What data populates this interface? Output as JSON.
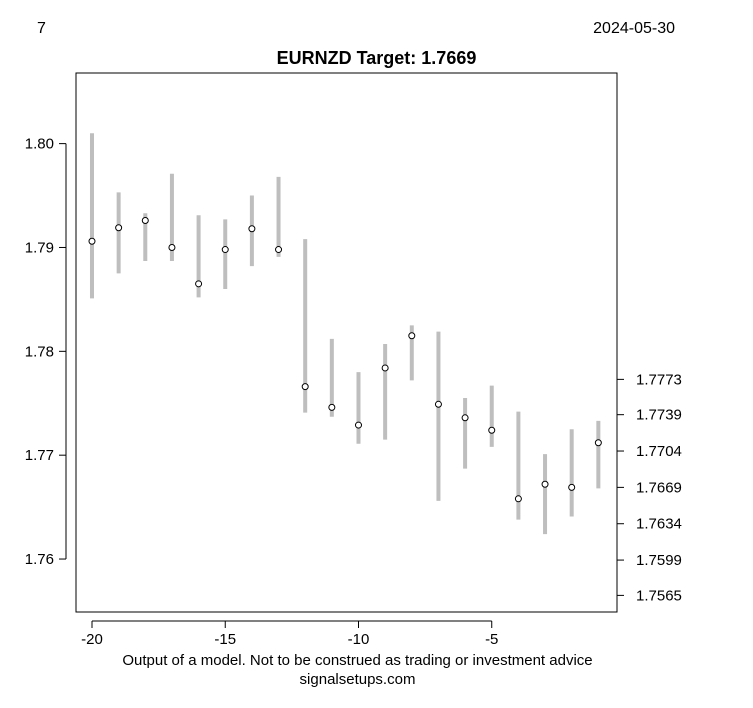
{
  "header": {
    "left_label": "7",
    "date": "2024-05-30"
  },
  "footer": {
    "disclaimer": "Output of a model. Not to be construed as trading or investment advice",
    "site": "signalsetups.com"
  },
  "colors": {
    "range_bar": "#bebebe",
    "point_fill": "#ffffff",
    "point_stroke": "#000000",
    "frame": "#000000"
  },
  "chart_data": {
    "type": "range",
    "title": "EURNZD Target: 1.7669",
    "xlabel": "",
    "ylabel": "",
    "grid": false,
    "xlim": [
      -20.6,
      -0.3
    ],
    "ylim": [
      1.7549,
      1.8068
    ],
    "x_ticks": [
      -20,
      -15,
      -10,
      -5
    ],
    "x_tick_labels": [
      "-20",
      "-15",
      "-10",
      "-5"
    ],
    "y_ticks_left": [
      1.76,
      1.77,
      1.78,
      1.79,
      1.8
    ],
    "y_tick_labels_left": [
      "1.76",
      "1.77",
      "1.78",
      "1.79",
      "1.80"
    ],
    "y_ticks_right": [
      1.7565,
      1.7599,
      1.7634,
      1.7669,
      1.7704,
      1.7739,
      1.7773
    ],
    "y_tick_labels_right": [
      "1.7565",
      "1.7599",
      "1.7634",
      "1.7669",
      "1.7704",
      "1.7739",
      "1.7773"
    ],
    "x": [
      -20,
      -19,
      -18,
      -17,
      -16,
      -15,
      -14,
      -13,
      -12,
      -11,
      -10,
      -9,
      -8,
      -7,
      -6,
      -5,
      -4,
      -3,
      -2,
      -1
    ],
    "points": [
      1.7906,
      1.7919,
      1.7926,
      1.79,
      1.7865,
      1.7898,
      1.7918,
      1.7898,
      1.7766,
      1.7746,
      1.7729,
      1.7784,
      1.7815,
      1.7749,
      1.7736,
      1.7724,
      1.7658,
      1.7672,
      1.7669,
      1.7712
    ],
    "low": [
      1.7851,
      1.7875,
      1.7887,
      1.7887,
      1.7852,
      1.786,
      1.7882,
      1.7891,
      1.7741,
      1.7737,
      1.7711,
      1.7715,
      1.7772,
      1.7656,
      1.7687,
      1.7708,
      1.7638,
      1.7624,
      1.7641,
      1.7668
    ],
    "high": [
      1.801,
      1.7953,
      1.7933,
      1.7971,
      1.7931,
      1.7927,
      1.795,
      1.7968,
      1.7908,
      1.7812,
      1.778,
      1.7807,
      1.7825,
      1.7819,
      1.7755,
      1.7767,
      1.7742,
      1.7701,
      1.7725,
      1.7733
    ]
  }
}
